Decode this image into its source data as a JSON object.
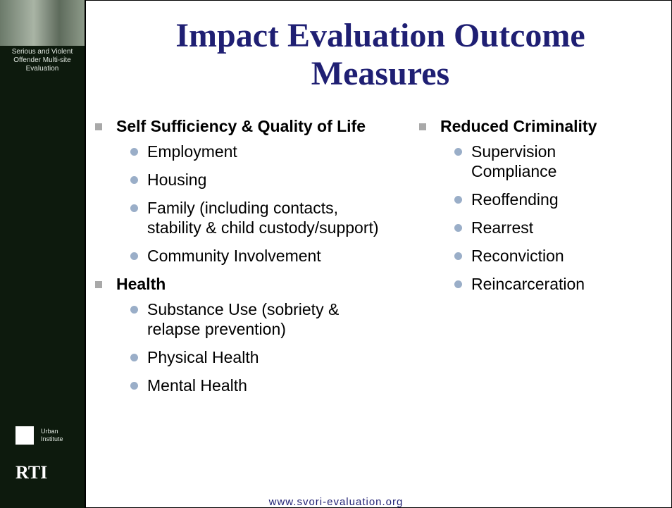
{
  "sidebar": {
    "title": "Serious and Violent Offender Multi-site Evaluation",
    "logo1": "Urban Institute",
    "logo2": "RTI"
  },
  "title": "Impact Evaluation Outcome Measures",
  "left": [
    {
      "heading": "Self Sufficiency & Quality of Life",
      "items": [
        "Employment",
        "Housing",
        "Family (including contacts, stability & child custody/support)",
        "Community Involvement"
      ]
    },
    {
      "heading": "Health",
      "items": [
        "Substance Use (sobriety & relapse prevention)",
        "Physical Health",
        "Mental Health"
      ]
    }
  ],
  "right": [
    {
      "heading": "Reduced Criminality",
      "items": [
        "Supervision Compliance",
        "Reoffending",
        "Rearrest",
        "Reconviction",
        "Reincarceration"
      ]
    }
  ],
  "footer": "www.svori-evaluation.org"
}
